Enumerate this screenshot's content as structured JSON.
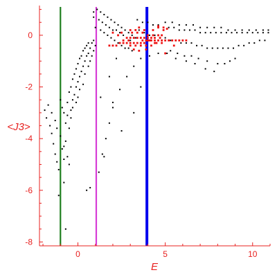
{
  "chart_data": {
    "type": "scatter",
    "xlabel": "E",
    "ylabel": "<J3>",
    "xlim": [
      -2.2,
      11
    ],
    "ylim": [
      -8.15,
      1.15
    ],
    "x_ticks": [
      {
        "value": 0,
        "label": "0"
      },
      {
        "value": 5,
        "label": "5"
      },
      {
        "value": 10,
        "label": "10"
      }
    ],
    "y_ticks": [
      {
        "value": -8,
        "label": "-8"
      },
      {
        "value": -6,
        "label": "-6"
      },
      {
        "value": -4,
        "label": "-4"
      },
      {
        "value": -2,
        "label": "-2"
      },
      {
        "value": 0,
        "label": "0"
      }
    ],
    "grid": false,
    "axis_color": "#e8201f",
    "vertical_lines": [
      {
        "x": -1.0,
        "color": "#1e7f1e"
      },
      {
        "x": 1.05,
        "color": "#d63cd6"
      },
      {
        "x": 3.95,
        "color": "#0000ee"
      }
    ],
    "series": [
      {
        "color": "#000000",
        "points": [
          [
            -1.9,
            -2.9
          ],
          [
            -1.8,
            -3.2
          ],
          [
            -1.6,
            -3.5
          ],
          [
            -1.5,
            -3.8
          ],
          [
            -1.4,
            -4.2
          ],
          [
            -1.3,
            -4.6
          ],
          [
            -1.2,
            -4.9
          ],
          [
            -1.1,
            -5.2
          ],
          [
            -1.7,
            -2.7
          ],
          [
            -1.5,
            -3.0
          ],
          [
            -1.3,
            -3.3
          ],
          [
            -1.2,
            -3.6
          ],
          [
            -1.0,
            -3.9
          ],
          [
            -0.8,
            -4.3
          ],
          [
            -0.6,
            -4.7
          ],
          [
            -0.5,
            -5.0
          ],
          [
            -1.0,
            -2.5
          ],
          [
            -0.9,
            -2.8
          ],
          [
            -0.8,
            -3.0
          ],
          [
            -0.6,
            -2.6
          ],
          [
            -0.5,
            -2.2
          ],
          [
            -0.4,
            -2.0
          ],
          [
            -0.3,
            -1.7
          ],
          [
            -0.2,
            -1.5
          ],
          [
            -0.1,
            -1.3
          ],
          [
            0.0,
            -1.1
          ],
          [
            0.1,
            -0.9
          ],
          [
            0.2,
            -0.8
          ],
          [
            0.3,
            -0.6
          ],
          [
            0.4,
            -0.5
          ],
          [
            0.5,
            -0.4
          ],
          [
            0.6,
            -0.3
          ],
          [
            -0.7,
            -3.4
          ],
          [
            -0.6,
            -3.1
          ],
          [
            -0.4,
            -2.9
          ],
          [
            -0.3,
            -2.5
          ],
          [
            -0.2,
            -2.3
          ],
          [
            -0.1,
            -2.0
          ],
          [
            0.0,
            -1.8
          ],
          [
            0.1,
            -1.6
          ],
          [
            0.2,
            -1.4
          ],
          [
            0.3,
            -1.2
          ],
          [
            0.4,
            -1.0
          ],
          [
            0.5,
            -0.8
          ],
          [
            0.6,
            -0.7
          ],
          [
            0.7,
            -0.5
          ],
          [
            0.8,
            -0.3
          ],
          [
            0.9,
            -0.2
          ],
          [
            -0.9,
            -4.4
          ],
          [
            -0.8,
            -4.8
          ],
          [
            -0.7,
            -4.1
          ],
          [
            -0.5,
            -3.6
          ],
          [
            -0.4,
            -3.2
          ],
          [
            -0.3,
            -2.8
          ],
          [
            -0.1,
            -2.6
          ],
          [
            0.0,
            -2.4
          ],
          [
            0.1,
            -2.1
          ],
          [
            0.3,
            -1.9
          ],
          [
            0.4,
            -1.5
          ],
          [
            0.6,
            -1.2
          ],
          [
            0.7,
            -1.0
          ],
          [
            0.8,
            -0.8
          ],
          [
            0.9,
            -0.6
          ],
          [
            1.0,
            -0.4
          ],
          [
            -1.1,
            -6.2
          ],
          [
            -0.8,
            -5.7
          ],
          [
            -0.7,
            -7.5
          ],
          [
            0.5,
            -6.0
          ],
          [
            0.7,
            -5.9
          ],
          [
            1.2,
            -5.3
          ],
          [
            1.4,
            -4.6
          ],
          [
            1.6,
            -4.0
          ],
          [
            1.8,
            -3.4
          ],
          [
            2.0,
            -2.8
          ],
          [
            2.4,
            -2.1
          ],
          [
            2.8,
            -1.6
          ],
          [
            3.2,
            -1.2
          ],
          [
            3.6,
            -0.9
          ],
          [
            4.1,
            -0.8
          ],
          [
            4.6,
            -0.7
          ],
          [
            5.1,
            -0.7
          ],
          [
            5.6,
            -0.9
          ],
          [
            6.2,
            -1.0
          ],
          [
            6.7,
            -1.1
          ],
          [
            7.3,
            -1.3
          ],
          [
            7.8,
            -1.4
          ],
          [
            8.4,
            -1.1
          ],
          [
            9.0,
            -0.9
          ],
          [
            0.9,
            0.9
          ],
          [
            1.1,
            1.0
          ],
          [
            1.3,
            0.9
          ],
          [
            1.5,
            0.8
          ],
          [
            1.7,
            0.7
          ],
          [
            1.9,
            0.6
          ],
          [
            2.1,
            0.5
          ],
          [
            2.3,
            0.4
          ],
          [
            2.5,
            0.3
          ],
          [
            2.7,
            0.2
          ],
          [
            2.9,
            0.1
          ],
          [
            3.1,
            0.0
          ],
          [
            3.3,
            -0.1
          ],
          [
            0.9,
            0.7
          ],
          [
            1.2,
            0.6
          ],
          [
            1.4,
            0.5
          ],
          [
            1.6,
            0.4
          ],
          [
            1.8,
            0.3
          ],
          [
            2.0,
            0.2
          ],
          [
            2.2,
            0.2
          ],
          [
            2.4,
            0.1
          ],
          [
            2.6,
            0.0
          ],
          [
            2.8,
            -0.1
          ],
          [
            3.0,
            -0.2
          ],
          [
            1.0,
            0.3
          ],
          [
            1.3,
            0.2
          ],
          [
            1.5,
            0.1
          ],
          [
            1.7,
            0.0
          ],
          [
            1.9,
            -0.1
          ],
          [
            2.1,
            -0.2
          ],
          [
            2.3,
            -0.3
          ],
          [
            2.5,
            -0.4
          ],
          [
            2.7,
            -0.5
          ],
          [
            2.9,
            -0.5
          ],
          [
            3.1,
            -0.6
          ],
          [
            3.4,
            0.6
          ],
          [
            3.7,
            0.5
          ],
          [
            4.0,
            0.5
          ],
          [
            4.3,
            0.4
          ],
          [
            4.6,
            0.4
          ],
          [
            4.9,
            0.3
          ],
          [
            5.2,
            0.3
          ],
          [
            5.5,
            0.3
          ],
          [
            5.8,
            0.2
          ],
          [
            6.1,
            0.2
          ],
          [
            6.4,
            0.2
          ],
          [
            6.7,
            0.2
          ],
          [
            7.0,
            0.1
          ],
          [
            7.3,
            0.1
          ],
          [
            7.6,
            0.1
          ],
          [
            7.9,
            0.1
          ],
          [
            8.2,
            0.1
          ],
          [
            8.5,
            0.1
          ],
          [
            8.8,
            0.1
          ],
          [
            9.1,
            0.1
          ],
          [
            9.4,
            0.1
          ],
          [
            9.7,
            0.1
          ],
          [
            10.0,
            0.1
          ],
          [
            10.3,
            0.1
          ],
          [
            10.6,
            0.1
          ],
          [
            10.9,
            0.1
          ],
          [
            3.5,
            0.2
          ],
          [
            3.8,
            0.1
          ],
          [
            4.1,
            0.0
          ],
          [
            4.4,
            0.0
          ],
          [
            4.7,
            -0.1
          ],
          [
            5.0,
            -0.1
          ],
          [
            5.3,
            -0.2
          ],
          [
            5.6,
            -0.2
          ],
          [
            5.9,
            -0.3
          ],
          [
            6.2,
            -0.3
          ],
          [
            6.5,
            -0.3
          ],
          [
            6.8,
            -0.4
          ],
          [
            7.1,
            -0.4
          ],
          [
            7.4,
            -0.5
          ],
          [
            7.7,
            -0.5
          ],
          [
            8.0,
            -0.5
          ],
          [
            8.3,
            -0.5
          ],
          [
            8.6,
            -0.5
          ],
          [
            8.9,
            -0.5
          ],
          [
            9.2,
            -0.4
          ],
          [
            9.5,
            -0.4
          ],
          [
            9.8,
            -0.3
          ],
          [
            10.1,
            -0.3
          ],
          [
            10.4,
            -0.2
          ],
          [
            10.7,
            -0.2
          ],
          [
            5.0,
            0.5
          ],
          [
            5.4,
            0.5
          ],
          [
            5.8,
            0.4
          ],
          [
            6.2,
            0.4
          ],
          [
            6.6,
            0.4
          ],
          [
            7.0,
            0.3
          ],
          [
            7.4,
            0.3
          ],
          [
            7.8,
            0.3
          ],
          [
            8.2,
            0.3
          ],
          [
            8.6,
            0.2
          ],
          [
            9.0,
            0.2
          ],
          [
            9.4,
            0.2
          ],
          [
            9.8,
            0.2
          ],
          [
            10.2,
            0.2
          ],
          [
            10.6,
            0.2
          ],
          [
            10.9,
            0.2
          ],
          [
            5.3,
            -0.6
          ],
          [
            5.7,
            -0.7
          ],
          [
            6.1,
            -0.8
          ],
          [
            6.5,
            -0.8
          ],
          [
            6.9,
            -0.9
          ],
          [
            7.4,
            -1.0
          ],
          [
            8.0,
            -1.1
          ],
          [
            8.7,
            -1.0
          ],
          [
            3.2,
            -3.0
          ],
          [
            3.6,
            -2.0
          ],
          [
            2.5,
            -3.7
          ],
          [
            1.5,
            -4.7
          ],
          [
            2.2,
            -0.9
          ],
          [
            1.8,
            -1.6
          ],
          [
            1.3,
            -2.4
          ],
          [
            2.0,
            -2.6
          ]
        ]
      },
      {
        "color": "#ee1111",
        "points": [
          [
            1.8,
            -0.4
          ],
          [
            2.0,
            -0.4
          ],
          [
            2.2,
            -0.4
          ],
          [
            2.4,
            -0.3
          ],
          [
            2.6,
            -0.3
          ],
          [
            2.8,
            -0.3
          ],
          [
            3.0,
            -0.3
          ],
          [
            3.2,
            -0.3
          ],
          [
            3.4,
            -0.3
          ],
          [
            3.6,
            -0.3
          ],
          [
            3.8,
            -0.3
          ],
          [
            4.0,
            -0.2
          ],
          [
            4.2,
            -0.2
          ],
          [
            4.4,
            -0.2
          ],
          [
            4.6,
            -0.2
          ],
          [
            4.8,
            -0.2
          ],
          [
            5.0,
            -0.2
          ],
          [
            5.2,
            -0.2
          ],
          [
            5.4,
            -0.2
          ],
          [
            5.6,
            -0.2
          ],
          [
            5.8,
            -0.2
          ],
          [
            6.0,
            -0.2
          ],
          [
            6.2,
            -0.2
          ],
          [
            2.6,
            -0.2
          ],
          [
            2.8,
            -0.1
          ],
          [
            3.0,
            -0.1
          ],
          [
            3.2,
            -0.1
          ],
          [
            3.4,
            -0.1
          ],
          [
            3.6,
            -0.1
          ],
          [
            3.8,
            -0.1
          ],
          [
            4.0,
            -0.1
          ],
          [
            4.2,
            -0.1
          ],
          [
            4.4,
            -0.1
          ],
          [
            4.6,
            0.0
          ],
          [
            4.8,
            0.0
          ],
          [
            3.0,
            -0.4
          ],
          [
            3.3,
            -0.4
          ],
          [
            3.6,
            -0.4
          ],
          [
            3.9,
            -0.4
          ],
          [
            4.2,
            -0.4
          ],
          [
            4.5,
            -0.3
          ],
          [
            4.8,
            -0.3
          ],
          [
            3.1,
            0.1
          ],
          [
            3.4,
            0.1
          ],
          [
            3.7,
            0.1
          ],
          [
            4.0,
            0.0
          ],
          [
            4.3,
            0.0
          ],
          [
            2.3,
            0.0
          ],
          [
            2.5,
            0.1
          ],
          [
            2.0,
            0.1
          ],
          [
            3.5,
            0.3
          ],
          [
            3.8,
            0.2
          ],
          [
            4.3,
            0.2
          ],
          [
            4.6,
            0.3
          ],
          [
            4.9,
            0.2
          ],
          [
            4.6,
            0.35
          ],
          [
            4.9,
            0.3
          ],
          [
            5.1,
            0.25
          ],
          [
            3.2,
            -0.55
          ],
          [
            3.5,
            -0.6
          ],
          [
            3.9,
            -0.55
          ],
          [
            5.5,
            -0.4
          ],
          [
            5.0,
            -0.7
          ],
          [
            3.0,
            0.2
          ],
          [
            3.3,
            0.2
          ],
          [
            2.9,
            -0.2
          ],
          [
            4.1,
            -0.2
          ],
          [
            4.4,
            -0.3
          ],
          [
            3.7,
            -0.2
          ],
          [
            3.9,
            -0.2
          ],
          [
            4.7,
            -0.1
          ]
        ]
      }
    ]
  }
}
